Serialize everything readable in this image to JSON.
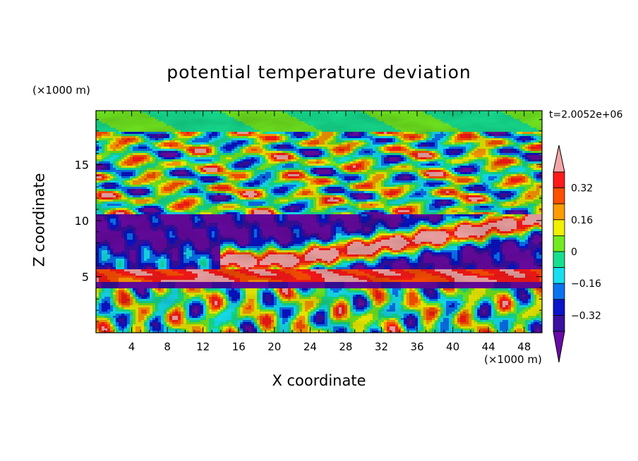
{
  "chart_data": {
    "type": "heatmap",
    "title": "potential temperature deviation",
    "xlabel": "X coordinate",
    "ylabel": "Z coordinate",
    "x_unit": "(×1000 m)",
    "y_unit": "(×1000 m)",
    "time_label": "t=2.0052e+06",
    "xlim": [
      0,
      50
    ],
    "ylim": [
      0,
      19.8
    ],
    "x_ticks": [
      "4",
      "8",
      "12",
      "16",
      "20",
      "24",
      "28",
      "32",
      "36",
      "40",
      "44",
      "48"
    ],
    "y_ticks": [
      "5",
      "10",
      "15"
    ],
    "colorbar": {
      "tick_labels": [
        "0.32",
        "0.16",
        "0",
        "−0.16",
        "−0.32"
      ],
      "levels": [
        -0.4,
        -0.32,
        -0.24,
        -0.16,
        -0.08,
        0,
        0.08,
        0.16,
        0.24,
        0.32,
        0.4
      ],
      "extend": "both",
      "colors": [
        "#6a0aa6",
        "#3a10a0",
        "#0a14c8",
        "#0a73f0",
        "#16e0f0",
        "#16e090",
        "#72ea20",
        "#f0f000",
        "#ff9c00",
        "#ff5000",
        "#ff1a1a",
        "#f4a6a6"
      ]
    },
    "field_bands": [
      {
        "z_range": [
          0.4,
          4.0
        ],
        "pattern": "alternating warm and cold columns"
      },
      {
        "z_range": [
          4.0,
          4.6
        ],
        "pattern": "cold layer, purple, -0.4"
      },
      {
        "z_range": [
          4.6,
          5.6
        ],
        "pattern": "warm layer, red to pink, +0.3 to +0.4"
      },
      {
        "z_range": [
          5.6,
          10.5
        ],
        "pattern": "cold deep purple base with warm pink band rising x=16 to 48"
      },
      {
        "z_range": [
          10.5,
          18
        ],
        "pattern": "mixed turbulent patches"
      },
      {
        "z_range": [
          18,
          19.8
        ],
        "pattern": "near zero, green"
      }
    ]
  }
}
